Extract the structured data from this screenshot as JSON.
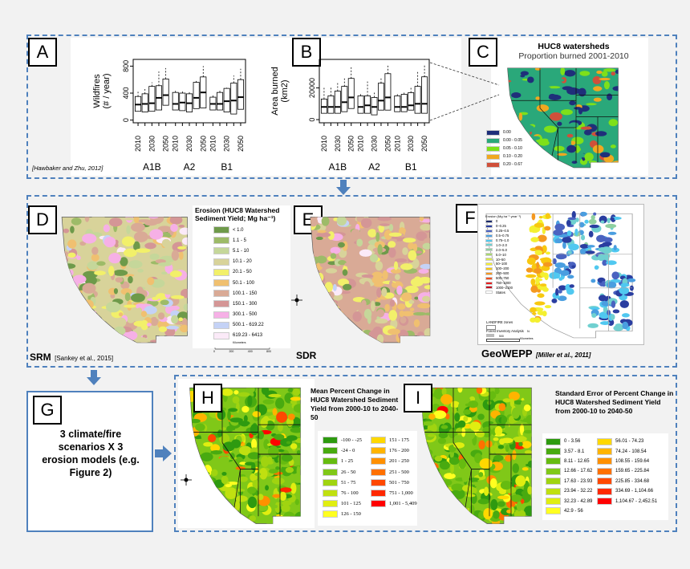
{
  "panels": {
    "A": {
      "label": "A",
      "citation": "[Hawbaker and Zhu, 2012]"
    },
    "B": {
      "label": "B"
    },
    "C": {
      "label": "C",
      "title": "HUC8 watersheds",
      "subtitle": "Proportion burned 2001-2010"
    },
    "D": {
      "label": "D",
      "model": "SRM",
      "citation": "[Sankey et al., 2015]"
    },
    "E": {
      "label": "E",
      "model": "SDR"
    },
    "F": {
      "label": "F",
      "model": "GeoWEPP",
      "citation": "[Miller et al., 2011]"
    },
    "G": {
      "label": "G",
      "text": "3 climate/fire scenarios X 3 erosion models (e.g. Figure 2)"
    },
    "H": {
      "label": "H",
      "title": "Mean Percent Change in HUC8 Watershed Sediment Yield from 2000-10 to 2040-50"
    },
    "I": {
      "label": "I",
      "title": "Standard Error of Percent Change in HUC8 Watershed Sediment Yield from 2000-10 to 2040-50"
    }
  },
  "chart_data": [
    {
      "type": "box",
      "ylabel": "Wildfires (# / year)",
      "yticks": [
        0,
        400,
        800
      ],
      "ylim": [
        -40,
        900
      ],
      "scenarios": [
        "A1B",
        "A2",
        "B1"
      ],
      "tick_labels": [
        "2010",
        "2030",
        "2050"
      ],
      "x": [
        "2010",
        "2020",
        "2030",
        "2040",
        "2050"
      ],
      "series": [
        {
          "name": "A1B",
          "boxes": [
            [
              130,
              230,
              350,
              420
            ],
            [
              120,
              240,
              390,
              460
            ],
            [
              130,
              250,
              500,
              560
            ],
            [
              150,
              330,
              510,
              720
            ],
            [
              220,
              370,
              610,
              770
            ]
          ]
        },
        {
          "name": "A2",
          "boxes": [
            [
              150,
              240,
              410,
              440
            ],
            [
              140,
              260,
              400,
              440
            ],
            [
              120,
              250,
              390,
              430
            ],
            [
              170,
              330,
              560,
              580
            ],
            [
              180,
              410,
              640,
              800
            ]
          ]
        },
        {
          "name": "B1",
          "boxes": [
            [
              150,
              240,
              340,
              380
            ],
            [
              150,
              240,
              410,
              440
            ],
            [
              120,
              280,
              470,
              480
            ],
            [
              90,
              290,
              550,
              660
            ],
            [
              160,
              340,
              600,
              760
            ]
          ]
        }
      ]
    },
    {
      "type": "box",
      "ylabel": "Area burned (km2)",
      "yticks": [
        0,
        20000
      ],
      "ylim": [
        -2000,
        38000
      ],
      "scenarios": [
        "A1B",
        "A2",
        "B1"
      ],
      "tick_labels": [
        "2010",
        "2030",
        "2050"
      ],
      "x": [
        "2010",
        "2020",
        "2030",
        "2040",
        "2050"
      ],
      "series": [
        {
          "name": "A1B",
          "boxes": [
            [
              4000,
              8000,
              13000,
              20000
            ],
            [
              4000,
              8000,
              15000,
              21000
            ],
            [
              4000,
              8000,
              18000,
              23000
            ],
            [
              5000,
              11000,
              21000,
              26000
            ],
            [
              7000,
              14000,
              26000,
              33000
            ]
          ]
        },
        {
          "name": "A2",
          "boxes": [
            [
              4000,
              8000,
              15000,
              17000
            ],
            [
              4000,
              9000,
              15000,
              24000
            ],
            [
              3000,
              8000,
              14000,
              17000
            ],
            [
              6000,
              12000,
              23000,
              26000
            ],
            [
              6000,
              14000,
              29000,
              34000
            ]
          ]
        },
        {
          "name": "B1",
          "boxes": [
            [
              5000,
              8000,
              15000,
              17000
            ],
            [
              5000,
              8000,
              16000,
              17000
            ],
            [
              6000,
              9000,
              17000,
              20000
            ],
            [
              4000,
              10000,
              21000,
              30000
            ],
            [
              4000,
              10000,
              27000,
              35000
            ]
          ]
        }
      ]
    }
  ],
  "legends": {
    "C": [
      {
        "label": "0.00",
        "color": "#1f2f7a"
      },
      {
        "label": "0.00 - 0.05",
        "color": "#2aa87a"
      },
      {
        "label": "0.05 - 0.10",
        "color": "#7ee01a"
      },
      {
        "label": "0.10 - 0.20",
        "color": "#f0a820"
      },
      {
        "label": "0.20 - 0.67",
        "color": "#d0503a"
      }
    ],
    "D": {
      "title": "Erosion (HUC8 Watershed Sediment Yield; Mg ha⁻¹)",
      "items": [
        {
          "label": "< 1.0",
          "color": "#6e9a4a"
        },
        {
          "label": "1.1 - 5",
          "color": "#9dbb68"
        },
        {
          "label": "5.1 - 10",
          "color": "#c5d79a"
        },
        {
          "label": "10.1 - 20",
          "color": "#d8d39a"
        },
        {
          "label": "20.1 - 50",
          "color": "#f2f06a"
        },
        {
          "label": "50.1 - 100",
          "color": "#f0c070"
        },
        {
          "label": "100.1 - 150",
          "color": "#d9aa96"
        },
        {
          "label": "150.1 - 300",
          "color": "#d49696"
        },
        {
          "label": "300.1 - 500",
          "color": "#f6b0e6"
        },
        {
          "label": "500.1 - 619.22",
          "color": "#c4d2f6"
        },
        {
          "label": "619.23 - 6413",
          "color": "#fbeaf8"
        }
      ],
      "scale_label": "Kilometers",
      "scale_ticks": [
        "0",
        "200",
        "400",
        "800"
      ]
    },
    "F": {
      "title": "Erosion (Mg ha⁻¹ year⁻¹)",
      "items": [
        {
          "label": "0",
          "color": "#1a2a6a"
        },
        {
          "label": "0–0.25",
          "color": "#2a3ea0"
        },
        {
          "label": "0.25–0.5",
          "color": "#4a62c0"
        },
        {
          "label": "0.5–0.75",
          "color": "#4a9ee0"
        },
        {
          "label": "0.75–1.0",
          "color": "#50c8f0"
        },
        {
          "label": "1.0–2.0",
          "color": "#70d0d0"
        },
        {
          "label": "2.0–5.0",
          "color": "#90d0a0"
        },
        {
          "label": "5.0–10",
          "color": "#a8d870"
        },
        {
          "label": "10–50",
          "color": "#d8e850"
        },
        {
          "label": "50–100",
          "color": "#f4f030"
        },
        {
          "label": "100–200",
          "color": "#f8c810"
        },
        {
          "label": "200–500",
          "color": "#f49820"
        },
        {
          "label": "500–750",
          "color": "#f05020"
        },
        {
          "label": "750–1000",
          "color": "#e82020"
        },
        {
          "label": "1000–2100",
          "color": "#c01020"
        }
      ],
      "states": "States",
      "landfire": "LANDFIRE zones",
      "fia": "Forest Inventory Analysis",
      "scale": "500",
      "scale_unit": "Kilometres",
      "north": "N"
    },
    "H": [
      {
        "label": "-100 - -25",
        "color": "#2e9a10"
      },
      {
        "label": "-24 - 0",
        "color": "#48aa10"
      },
      {
        "label": "1 - 25",
        "color": "#66bb10"
      },
      {
        "label": "26 - 50",
        "color": "#80c818"
      },
      {
        "label": "51 - 75",
        "color": "#a0d410"
      },
      {
        "label": "76 - 100",
        "color": "#c0e010"
      },
      {
        "label": "101 - 125",
        "color": "#e0ee10"
      },
      {
        "label": "126 - 150",
        "color": "#ffff20"
      },
      {
        "label": "151 - 175",
        "color": "#ffd800"
      },
      {
        "label": "176 - 200",
        "color": "#ffb400"
      },
      {
        "label": "201 - 250",
        "color": "#ff9000"
      },
      {
        "label": "251 - 500",
        "color": "#ff7000"
      },
      {
        "label": "501 - 750",
        "color": "#ff4800"
      },
      {
        "label": "751 - 1,000",
        "color": "#ff2800"
      },
      {
        "label": "1,001 - 5,409",
        "color": "#ff0000"
      }
    ],
    "I": [
      {
        "label": "0 - 3.56",
        "color": "#2e9a10"
      },
      {
        "label": "3.57 - 8.1",
        "color": "#48aa10"
      },
      {
        "label": "8.11 - 12.65",
        "color": "#66bb10"
      },
      {
        "label": "12.66 - 17.62",
        "color": "#80c818"
      },
      {
        "label": "17.63 - 23.93",
        "color": "#a0d410"
      },
      {
        "label": "23.94 - 32.22",
        "color": "#c0e010"
      },
      {
        "label": "32.23 - 42.89",
        "color": "#e0ee10"
      },
      {
        "label": "42.9 - 56",
        "color": "#ffff20"
      },
      {
        "label": "56.01 - 74.23",
        "color": "#ffd800"
      },
      {
        "label": "74.24 - 108.54",
        "color": "#ffb400"
      },
      {
        "label": "108.55 - 159.64",
        "color": "#ff9000"
      },
      {
        "label": "159.65 - 225.84",
        "color": "#ff7000"
      },
      {
        "label": "225.85 - 334.68",
        "color": "#ff4800"
      },
      {
        "label": "334.69 - 1,104.66",
        "color": "#ff2800"
      },
      {
        "label": "1,104.67 - 2,452.51",
        "color": "#ff0000"
      }
    ]
  },
  "colors": {
    "frame": "#4f81bd"
  }
}
